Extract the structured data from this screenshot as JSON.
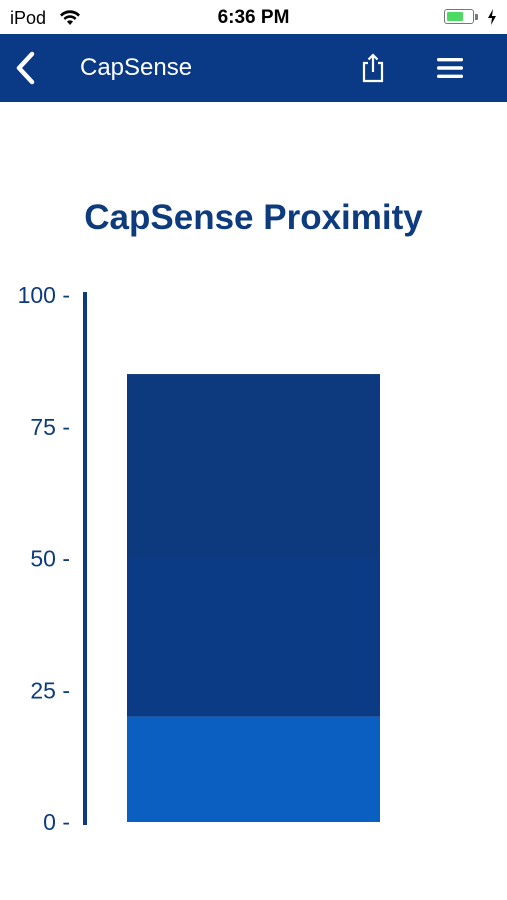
{
  "status_bar": {
    "carrier": "iPod",
    "time": "6:36 PM",
    "battery_level": 0.7,
    "charging": true
  },
  "nav": {
    "title": "CapSense",
    "back_icon": "chevron-left-icon",
    "share_icon": "share-icon",
    "menu_icon": "hamburger-menu-icon"
  },
  "colors": {
    "nav_background": "#0a3a85",
    "title_text": "#0d3b7e",
    "axis": "#0d3b7e",
    "bar_low": "#0a5fc0",
    "bar_mid": "#0b3b85",
    "bar_high": "#0d3a7e"
  },
  "chart_data": {
    "type": "bar",
    "title": "CapSense Proximity",
    "value": 85,
    "ylim": [
      0,
      100
    ],
    "yticks": [
      0,
      25,
      50,
      75,
      100
    ],
    "ytick_labels": [
      "0 -",
      "25 -",
      "50 -",
      "75 -",
      "100 -"
    ],
    "segments": [
      {
        "from": 0,
        "to": 20,
        "color": "#0a5fc0"
      },
      {
        "from": 20,
        "to": 50,
        "color": "#0b3b85"
      },
      {
        "from": 50,
        "to": 85,
        "color": "#0d3a7e"
      }
    ]
  }
}
